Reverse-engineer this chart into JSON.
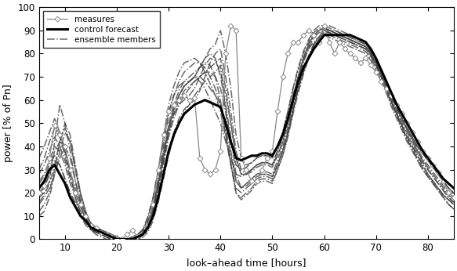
{
  "xlabel": "look–ahead time [hours]",
  "ylabel": "power [% of Pn]",
  "xlim": [
    5,
    85
  ],
  "ylim": [
    0,
    100
  ],
  "xticks": [
    10,
    20,
    30,
    40,
    50,
    60,
    70,
    80
  ],
  "yticks": [
    0,
    10,
    20,
    30,
    40,
    50,
    60,
    70,
    80,
    90,
    100
  ],
  "background_color": "#ffffff",
  "control_color": "#000000",
  "measure_color": "#888888",
  "ensemble_color": "#444444",
  "control_lw": 2.2,
  "ensemble_lw": 1.1,
  "measure_lw": 0.9,
  "figsize": [
    5.83,
    3.46
  ],
  "dpi": 100,
  "t_control": [
    5,
    6,
    7,
    8,
    9,
    10,
    11,
    12,
    13,
    14,
    15,
    16,
    17,
    18,
    19,
    20,
    21,
    22,
    23,
    24,
    25,
    26,
    27,
    28,
    29,
    30,
    31,
    32,
    33,
    34,
    35,
    36,
    37,
    38,
    39,
    40,
    41,
    42,
    43,
    44,
    45,
    46,
    47,
    48,
    49,
    50,
    51,
    52,
    53,
    54,
    55,
    56,
    57,
    58,
    59,
    60,
    61,
    62,
    63,
    64,
    65,
    66,
    67,
    68,
    69,
    70,
    71,
    72,
    73,
    74,
    75,
    76,
    77,
    78,
    79,
    80,
    81,
    82,
    83,
    84,
    85
  ],
  "v_control": [
    22,
    25,
    30,
    32,
    28,
    24,
    18,
    14,
    10,
    8,
    5,
    4,
    3,
    2,
    1,
    0,
    0,
    0,
    0,
    1,
    2,
    5,
    10,
    18,
    28,
    38,
    45,
    50,
    54,
    56,
    58,
    59,
    60,
    59,
    58,
    57,
    50,
    42,
    35,
    34,
    35,
    36,
    36,
    37,
    37,
    36,
    40,
    45,
    52,
    60,
    68,
    74,
    78,
    82,
    85,
    88,
    88,
    88,
    88,
    88,
    88,
    87,
    86,
    85,
    82,
    78,
    73,
    68,
    63,
    58,
    54,
    50,
    46,
    42,
    38,
    35,
    32,
    29,
    26,
    24,
    22
  ],
  "v_measures": [
    20,
    23,
    35,
    49,
    45,
    40,
    30,
    20,
    15,
    10,
    6,
    5,
    3,
    2,
    1,
    0,
    0,
    2,
    4,
    1,
    2,
    6,
    15,
    30,
    45,
    55,
    58,
    60,
    62,
    60,
    61,
    35,
    30,
    28,
    30,
    38,
    80,
    92,
    90,
    35,
    30,
    25,
    25,
    30,
    35,
    38,
    55,
    70,
    80,
    85,
    85,
    88,
    90,
    88,
    85,
    92,
    85,
    80,
    85,
    82,
    80,
    78,
    76,
    78,
    75,
    72,
    68,
    65,
    62,
    58,
    54,
    50,
    46,
    42,
    38,
    35,
    32,
    29,
    25,
    20,
    18
  ],
  "ensemble_data": [
    [
      20,
      22,
      28,
      38,
      42,
      38,
      28,
      18,
      10,
      6,
      4,
      3,
      2,
      1,
      0,
      0,
      0,
      0,
      0,
      2,
      4,
      10,
      18,
      30,
      42,
      55,
      62,
      66,
      68,
      68,
      70,
      68,
      65,
      60,
      55,
      50,
      42,
      35,
      28,
      27,
      28,
      30,
      32,
      33,
      33,
      32,
      38,
      44,
      52,
      62,
      70,
      78,
      82,
      85,
      87,
      90,
      89,
      88,
      87,
      86,
      85,
      84,
      83,
      82,
      80,
      76,
      71,
      66,
      61,
      56,
      52,
      48,
      44,
      40,
      37,
      34,
      31,
      28,
      25,
      22,
      20
    ],
    [
      24,
      27,
      32,
      36,
      32,
      26,
      20,
      16,
      12,
      9,
      6,
      5,
      4,
      3,
      2,
      1,
      0,
      0,
      0,
      0,
      1,
      3,
      8,
      16,
      26,
      36,
      44,
      50,
      55,
      58,
      62,
      65,
      68,
      70,
      72,
      75,
      55,
      38,
      25,
      22,
      24,
      26,
      28,
      28,
      28,
      27,
      32,
      38,
      46,
      56,
      65,
      72,
      78,
      84,
      87,
      91,
      92,
      91,
      90,
      89,
      88,
      87,
      86,
      85,
      82,
      78,
      73,
      68,
      62,
      57,
      53,
      48,
      44,
      40,
      37,
      34,
      31,
      28,
      25,
      22,
      20
    ],
    [
      18,
      20,
      25,
      42,
      58,
      50,
      38,
      25,
      15,
      8,
      4,
      2,
      1,
      0,
      0,
      0,
      0,
      0,
      0,
      1,
      2,
      6,
      12,
      22,
      34,
      46,
      54,
      58,
      60,
      62,
      65,
      70,
      75,
      78,
      77,
      72,
      62,
      50,
      35,
      28,
      28,
      30,
      32,
      33,
      33,
      32,
      36,
      42,
      50,
      60,
      70,
      78,
      84,
      88,
      90,
      91,
      90,
      89,
      88,
      87,
      86,
      85,
      84,
      83,
      80,
      76,
      72,
      67,
      62,
      57,
      52,
      47,
      43,
      38,
      34,
      30,
      27,
      24,
      21,
      18,
      16
    ],
    [
      15,
      18,
      22,
      28,
      35,
      40,
      35,
      25,
      16,
      10,
      5,
      3,
      2,
      1,
      0,
      0,
      0,
      0,
      1,
      2,
      4,
      8,
      15,
      25,
      38,
      50,
      58,
      64,
      68,
      70,
      72,
      74,
      76,
      75,
      70,
      60,
      45,
      32,
      20,
      18,
      20,
      22,
      25,
      26,
      26,
      25,
      30,
      36,
      45,
      55,
      65,
      73,
      79,
      84,
      87,
      90,
      90,
      89,
      88,
      87,
      86,
      85,
      84,
      83,
      80,
      75,
      70,
      65,
      59,
      54,
      49,
      44,
      40,
      36,
      32,
      28,
      25,
      22,
      19,
      17,
      15
    ],
    [
      28,
      32,
      38,
      44,
      40,
      34,
      26,
      20,
      14,
      10,
      7,
      5,
      4,
      3,
      2,
      1,
      0,
      0,
      0,
      0,
      1,
      4,
      10,
      20,
      32,
      44,
      52,
      58,
      62,
      65,
      68,
      70,
      72,
      72,
      70,
      65,
      55,
      43,
      32,
      30,
      31,
      33,
      35,
      36,
      36,
      35,
      40,
      46,
      55,
      65,
      73,
      80,
      85,
      89,
      91,
      91,
      90,
      90,
      89,
      88,
      87,
      86,
      85,
      84,
      81,
      77,
      72,
      67,
      62,
      57,
      52,
      48,
      44,
      40,
      37,
      34,
      31,
      28,
      25,
      22,
      20
    ],
    [
      12,
      15,
      20,
      30,
      42,
      50,
      45,
      32,
      20,
      12,
      6,
      3,
      2,
      1,
      0,
      0,
      0,
      0,
      0,
      1,
      3,
      7,
      14,
      24,
      36,
      48,
      56,
      62,
      66,
      68,
      70,
      74,
      78,
      80,
      78,
      70,
      58,
      44,
      28,
      22,
      24,
      26,
      28,
      29,
      29,
      28,
      34,
      40,
      48,
      58,
      68,
      76,
      82,
      87,
      89,
      90,
      89,
      88,
      87,
      86,
      85,
      84,
      83,
      82,
      79,
      75,
      70,
      65,
      59,
      54,
      49,
      44,
      40,
      36,
      32,
      28,
      25,
      22,
      19,
      17,
      15
    ],
    [
      25,
      28,
      34,
      40,
      38,
      32,
      24,
      18,
      12,
      8,
      5,
      4,
      3,
      2,
      1,
      0,
      0,
      0,
      0,
      1,
      2,
      5,
      12,
      22,
      34,
      46,
      54,
      60,
      64,
      66,
      68,
      70,
      72,
      74,
      76,
      78,
      65,
      50,
      35,
      28,
      28,
      30,
      32,
      33,
      33,
      32,
      38,
      44,
      52,
      62,
      70,
      78,
      84,
      88,
      90,
      91,
      90,
      89,
      88,
      87,
      86,
      85,
      84,
      83,
      80,
      76,
      71,
      66,
      60,
      55,
      50,
      46,
      42,
      38,
      34,
      31,
      28,
      25,
      22,
      19,
      17
    ],
    [
      30,
      35,
      42,
      48,
      44,
      36,
      27,
      20,
      14,
      9,
      6,
      4,
      3,
      2,
      1,
      0,
      0,
      0,
      0,
      0,
      2,
      6,
      13,
      23,
      35,
      48,
      56,
      62,
      66,
      68,
      70,
      70,
      68,
      65,
      62,
      58,
      48,
      36,
      25,
      22,
      23,
      25,
      27,
      28,
      28,
      27,
      32,
      38,
      46,
      56,
      65,
      73,
      79,
      84,
      87,
      89,
      88,
      87,
      86,
      85,
      84,
      83,
      82,
      81,
      78,
      74,
      69,
      64,
      58,
      53,
      48,
      43,
      39,
      35,
      31,
      28,
      25,
      22,
      19,
      17,
      15
    ],
    [
      10,
      12,
      18,
      28,
      38,
      46,
      42,
      30,
      18,
      10,
      5,
      3,
      2,
      1,
      0,
      0,
      0,
      0,
      0,
      1,
      3,
      7,
      14,
      26,
      40,
      54,
      62,
      68,
      72,
      74,
      76,
      76,
      74,
      70,
      65,
      58,
      46,
      33,
      20,
      17,
      19,
      21,
      24,
      25,
      25,
      24,
      30,
      36,
      44,
      54,
      63,
      71,
      78,
      83,
      86,
      88,
      87,
      86,
      85,
      84,
      83,
      82,
      81,
      80,
      77,
      73,
      68,
      63,
      57,
      52,
      47,
      42,
      38,
      34,
      30,
      27,
      24,
      21,
      18,
      15,
      13
    ],
    [
      20,
      23,
      28,
      34,
      32,
      26,
      20,
      15,
      10,
      7,
      4,
      3,
      2,
      1,
      0,
      0,
      0,
      0,
      1,
      2,
      4,
      9,
      18,
      30,
      44,
      58,
      66,
      72,
      76,
      77,
      78,
      76,
      72,
      67,
      62,
      55,
      44,
      32,
      22,
      20,
      22,
      24,
      26,
      27,
      27,
      26,
      32,
      38,
      46,
      56,
      65,
      72,
      78,
      83,
      86,
      89,
      89,
      88,
      87,
      86,
      85,
      84,
      83,
      82,
      79,
      75,
      70,
      65,
      59,
      54,
      49,
      45,
      41,
      37,
      33,
      30,
      27,
      24,
      21,
      18,
      16
    ],
    [
      35,
      40,
      46,
      52,
      46,
      38,
      29,
      22,
      16,
      11,
      7,
      5,
      4,
      3,
      2,
      1,
      0,
      0,
      0,
      0,
      2,
      6,
      13,
      24,
      36,
      48,
      56,
      62,
      66,
      68,
      70,
      74,
      78,
      82,
      84,
      90,
      80,
      65,
      45,
      35,
      32,
      33,
      35,
      36,
      36,
      35,
      40,
      46,
      55,
      65,
      74,
      81,
      86,
      90,
      92,
      92,
      91,
      90,
      89,
      88,
      87,
      86,
      85,
      84,
      81,
      77,
      72,
      67,
      61,
      56,
      51,
      47,
      43,
      39,
      35,
      32,
      29,
      26,
      23,
      20,
      18
    ],
    [
      16,
      19,
      24,
      32,
      42,
      48,
      42,
      30,
      20,
      12,
      6,
      4,
      2,
      1,
      0,
      0,
      0,
      0,
      0,
      1,
      2,
      5,
      10,
      18,
      28,
      38,
      46,
      52,
      56,
      58,
      60,
      64,
      70,
      76,
      80,
      82,
      70,
      55,
      38,
      30,
      28,
      29,
      31,
      32,
      32,
      31,
      36,
      42,
      50,
      60,
      70,
      77,
      83,
      87,
      90,
      91,
      90,
      89,
      88,
      87,
      86,
      85,
      84,
      83,
      80,
      76,
      71,
      65,
      59,
      54,
      48,
      43,
      39,
      34,
      30,
      27,
      24,
      21,
      18,
      15,
      13
    ]
  ]
}
